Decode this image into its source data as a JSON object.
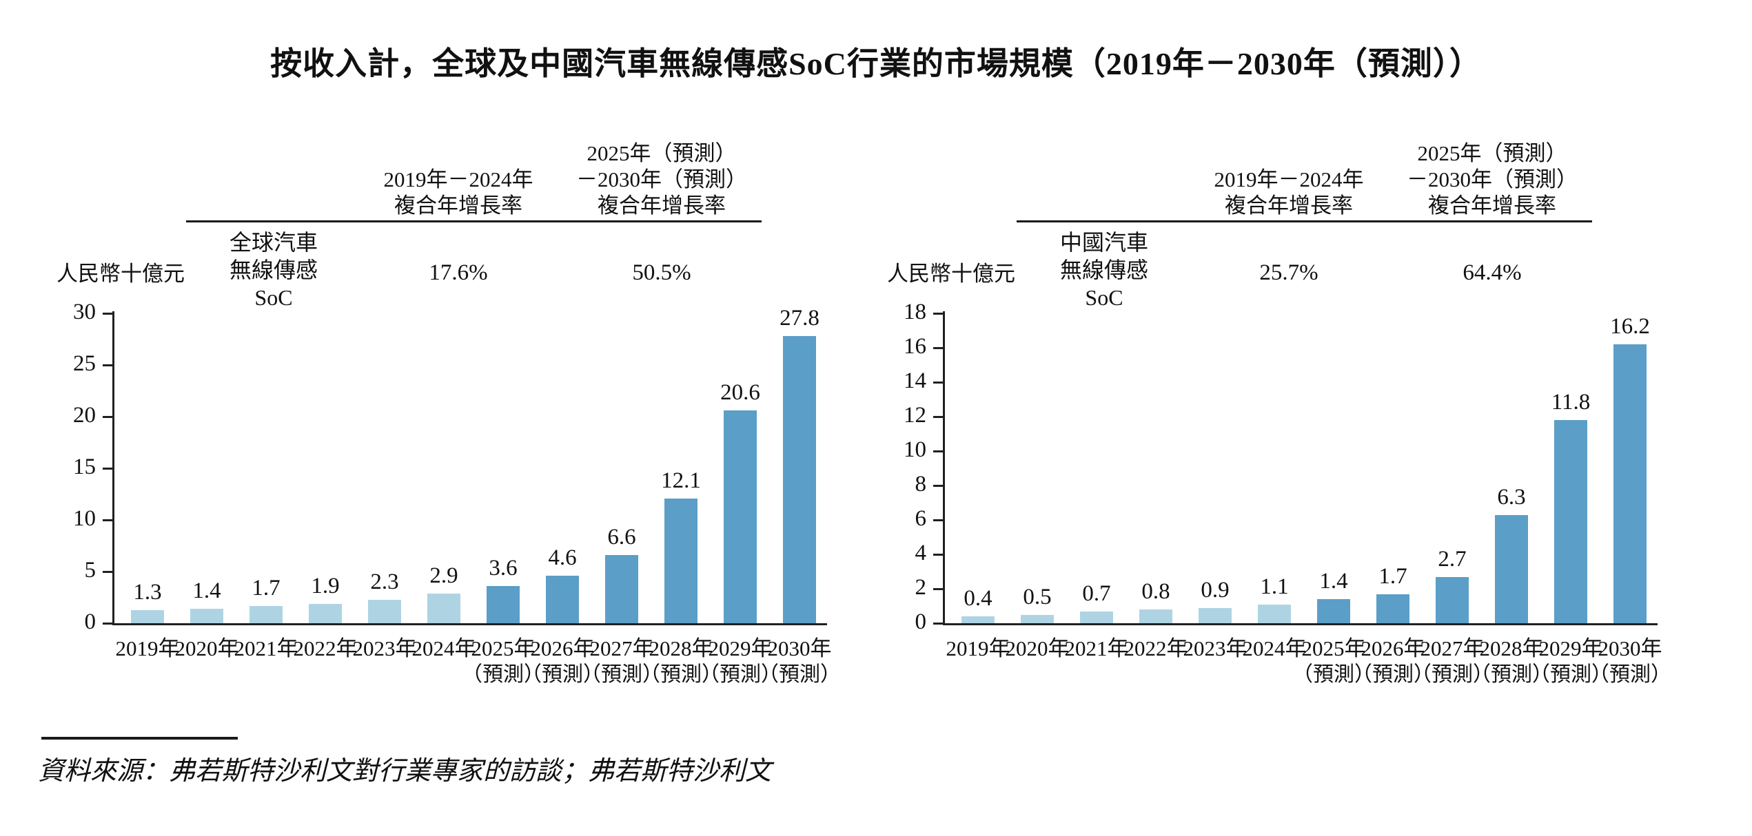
{
  "title": "按收入計，全球及中國汽車無線傳感SoC行業的市場規模（2019年－2030年（預測））",
  "source_note": "資料來源：弗若斯特沙利文對行業專家的訪談；弗若斯特沙利文",
  "colors": {
    "bar_historical": "#aed4e4",
    "bar_forecast": "#5b9ec8",
    "axis": "#231f20",
    "text": "#111111"
  },
  "chart_data": [
    {
      "type": "bar",
      "panel": "global",
      "series_label_lines": [
        "全球汽車",
        "無線傳感",
        "SoC"
      ],
      "cagr_columns": [
        {
          "header_lines": [
            "2019年－2024年",
            "複合年增長率"
          ],
          "value": "17.6%"
        },
        {
          "header_lines": [
            "2025年（預測）",
            "－2030年（預測）",
            "複合年增長率"
          ],
          "value": "50.5%"
        }
      ],
      "ylabel": "人民幣十億元",
      "categories": [
        "2019年",
        "2020年",
        "2021年",
        "2022年",
        "2023年",
        "2024年",
        "2025年",
        "2026年",
        "2027年",
        "2028年",
        "2029年",
        "2030年"
      ],
      "forecast_suffix": "（預測）",
      "forecast_from_index": 6,
      "values": [
        1.3,
        1.4,
        1.7,
        1.9,
        2.3,
        2.9,
        3.6,
        4.6,
        6.6,
        12.1,
        20.6,
        27.8
      ],
      "ylim": [
        0,
        30
      ],
      "ytick_step": 5,
      "grid": false,
      "legend": "none"
    },
    {
      "type": "bar",
      "panel": "china",
      "series_label_lines": [
        "中國汽車",
        "無線傳感",
        "SoC"
      ],
      "cagr_columns": [
        {
          "header_lines": [
            "2019年－2024年",
            "複合年增長率"
          ],
          "value": "25.7%"
        },
        {
          "header_lines": [
            "2025年（預測）",
            "－2030年（預測）",
            "複合年增長率"
          ],
          "value": "64.4%"
        }
      ],
      "ylabel": "人民幣十億元",
      "categories": [
        "2019年",
        "2020年",
        "2021年",
        "2022年",
        "2023年",
        "2024年",
        "2025年",
        "2026年",
        "2027年",
        "2028年",
        "2029年",
        "2030年"
      ],
      "forecast_suffix": "（預測）",
      "forecast_from_index": 6,
      "values": [
        0.4,
        0.5,
        0.7,
        0.8,
        0.9,
        1.1,
        1.4,
        1.7,
        2.7,
        6.3,
        11.8,
        16.2
      ],
      "ylim": [
        0,
        18
      ],
      "ytick_step": 2,
      "grid": false,
      "legend": "none"
    }
  ]
}
